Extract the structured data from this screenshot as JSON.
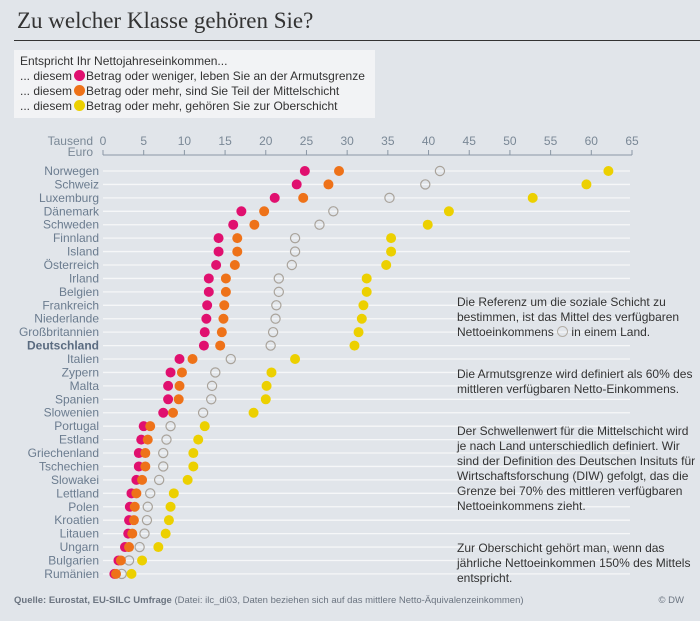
{
  "title": "Zu welcher Klasse gehören Sie?",
  "legend": {
    "intro": "Entspricht Ihr Nettojahreseinkommen...",
    "prefix": "... diesem",
    "items": [
      {
        "key": "armut",
        "color": "#e0106f",
        "text": "Betrag oder weniger, leben Sie an der Armutsgrenze"
      },
      {
        "key": "mittel",
        "color": "#ee7219",
        "text": "Betrag oder mehr, sind Sie Teil der Mittelschicht"
      },
      {
        "key": "ober",
        "color": "#ecd000",
        "text": "Betrag oder mehr, gehören Sie zur Oberschicht"
      }
    ]
  },
  "side_text": {
    "p1a": "Die Referenz um die soziale Schicht zu bestimmen, ist das Mittel des verfügbaren Nettoeinkommens",
    "p1b": "in einem Land.",
    "p2": "Die Armutsgrenze wird definiert als 60% des mittleren verfügbaren Netto-Einkommens.",
    "p3": "Der Schwellenwert für die Mittelschicht wird je nach Land unterschiedlich definiert. Wir sind der Definition des Deutschen Insituts für Wirtschaftsforschung (DIW) gefolgt, das die Grenze bei 70% des mittleren verfügbaren Nettoeinkommens zieht.",
    "p4": "Zur Oberschicht gehört man, wenn das jährliche Nettoeinkommen 150% des Mittels entspricht."
  },
  "footer": {
    "source_bold": "Quelle: Eurostat, EU-SILC Umfrage",
    "source_rest": " (Datei: ilc_di03, Daten beziehen sich auf das mittlere Netto-Äquivalenzeinkommen)",
    "copyright": "© DW"
  },
  "colors": {
    "armut": "#e0106f",
    "mittel": "#ee7219",
    "ober": "#ecd000",
    "median_stroke": "#a9a39b"
  },
  "chart_data": {
    "type": "scatter",
    "title": "Zu welcher Klasse gehören Sie?",
    "xlabel": "Tausend Euro",
    "xlim": [
      0,
      65
    ],
    "xticks": [
      0,
      5,
      10,
      15,
      20,
      25,
      30,
      35,
      40,
      45,
      50,
      55,
      60,
      65
    ],
    "grid": true,
    "legend_position": "top-left",
    "ratios": {
      "armut": 0.6,
      "mittel": 0.7,
      "ober": 1.5
    },
    "series_names": {
      "armut": "Armutsgrenze (60%)",
      "mittel": "Mittelschicht (70%)",
      "median": "Mittleres Nettoeinkommen",
      "ober": "Oberschicht (150%)"
    },
    "countries": [
      {
        "name": "Norwegen",
        "armut": 24.8,
        "mittel": 29.0,
        "median": 41.4,
        "ober": 62.1
      },
      {
        "name": "Schweiz",
        "armut": 23.8,
        "mittel": 27.7,
        "median": 39.6,
        "ober": 59.4
      },
      {
        "name": "Luxemburg",
        "armut": 21.1,
        "mittel": 24.6,
        "median": 35.2,
        "ober": 52.8
      },
      {
        "name": "Dänemark",
        "armut": 17.0,
        "mittel": 19.8,
        "median": 28.3,
        "ober": 42.5
      },
      {
        "name": "Schweden",
        "armut": 16.0,
        "mittel": 18.6,
        "median": 26.6,
        "ober": 39.9
      },
      {
        "name": "Finnland",
        "armut": 14.2,
        "mittel": 16.5,
        "median": 23.6,
        "ober": 35.4
      },
      {
        "name": "Island",
        "armut": 14.2,
        "mittel": 16.5,
        "median": 23.6,
        "ober": 35.4
      },
      {
        "name": "Österreich",
        "armut": 13.9,
        "mittel": 16.2,
        "median": 23.2,
        "ober": 34.8
      },
      {
        "name": "Irland",
        "armut": 13.0,
        "mittel": 15.1,
        "median": 21.6,
        "ober": 32.4
      },
      {
        "name": "Belgien",
        "armut": 13.0,
        "mittel": 15.1,
        "median": 21.6,
        "ober": 32.4
      },
      {
        "name": "Frankreich",
        "armut": 12.8,
        "mittel": 14.9,
        "median": 21.3,
        "ober": 32.0
      },
      {
        "name": "Niederlande",
        "armut": 12.7,
        "mittel": 14.8,
        "median": 21.2,
        "ober": 31.8
      },
      {
        "name": "Großbritannien",
        "armut": 12.5,
        "mittel": 14.6,
        "median": 20.9,
        "ober": 31.4
      },
      {
        "name": "Deutschland",
        "armut": 12.4,
        "mittel": 14.4,
        "median": 20.6,
        "ober": 30.9,
        "highlight": true
      },
      {
        "name": "Italien",
        "armut": 9.4,
        "mittel": 11.0,
        "median": 15.7,
        "ober": 23.6
      },
      {
        "name": "Zypern",
        "armut": 8.3,
        "mittel": 9.7,
        "median": 13.8,
        "ober": 20.7
      },
      {
        "name": "Malta",
        "armut": 8.0,
        "mittel": 9.4,
        "median": 13.4,
        "ober": 20.1
      },
      {
        "name": "Spanien",
        "armut": 8.0,
        "mittel": 9.3,
        "median": 13.3,
        "ober": 20.0
      },
      {
        "name": "Slowenien",
        "armut": 7.4,
        "mittel": 8.6,
        "median": 12.3,
        "ober": 18.5
      },
      {
        "name": "Portugal",
        "armut": 5.0,
        "mittel": 5.8,
        "median": 8.3,
        "ober": 12.5
      },
      {
        "name": "Estland",
        "armut": 4.7,
        "mittel": 5.5,
        "median": 7.8,
        "ober": 11.7
      },
      {
        "name": "Griechenland",
        "armut": 4.4,
        "mittel": 5.2,
        "median": 7.4,
        "ober": 11.1
      },
      {
        "name": "Tschechien",
        "armut": 4.4,
        "mittel": 5.2,
        "median": 7.4,
        "ober": 11.1
      },
      {
        "name": "Slowakei",
        "armut": 4.1,
        "mittel": 4.8,
        "median": 6.9,
        "ober": 10.4
      },
      {
        "name": "Lettland",
        "armut": 3.5,
        "mittel": 4.1,
        "median": 5.8,
        "ober": 8.7
      },
      {
        "name": "Polen",
        "armut": 3.3,
        "mittel": 3.9,
        "median": 5.5,
        "ober": 8.3
      },
      {
        "name": "Kroatien",
        "armut": 3.2,
        "mittel": 3.8,
        "median": 5.4,
        "ober": 8.1
      },
      {
        "name": "Litauen",
        "armut": 3.1,
        "mittel": 3.6,
        "median": 5.1,
        "ober": 7.7
      },
      {
        "name": "Ungarn",
        "armut": 2.7,
        "mittel": 3.2,
        "median": 4.5,
        "ober": 6.8
      },
      {
        "name": "Bulgarien",
        "armut": 1.9,
        "mittel": 2.2,
        "median": 3.2,
        "ober": 4.8
      },
      {
        "name": "Rumänien",
        "armut": 1.4,
        "mittel": 1.6,
        "median": 2.3,
        "ober": 3.5
      }
    ]
  }
}
